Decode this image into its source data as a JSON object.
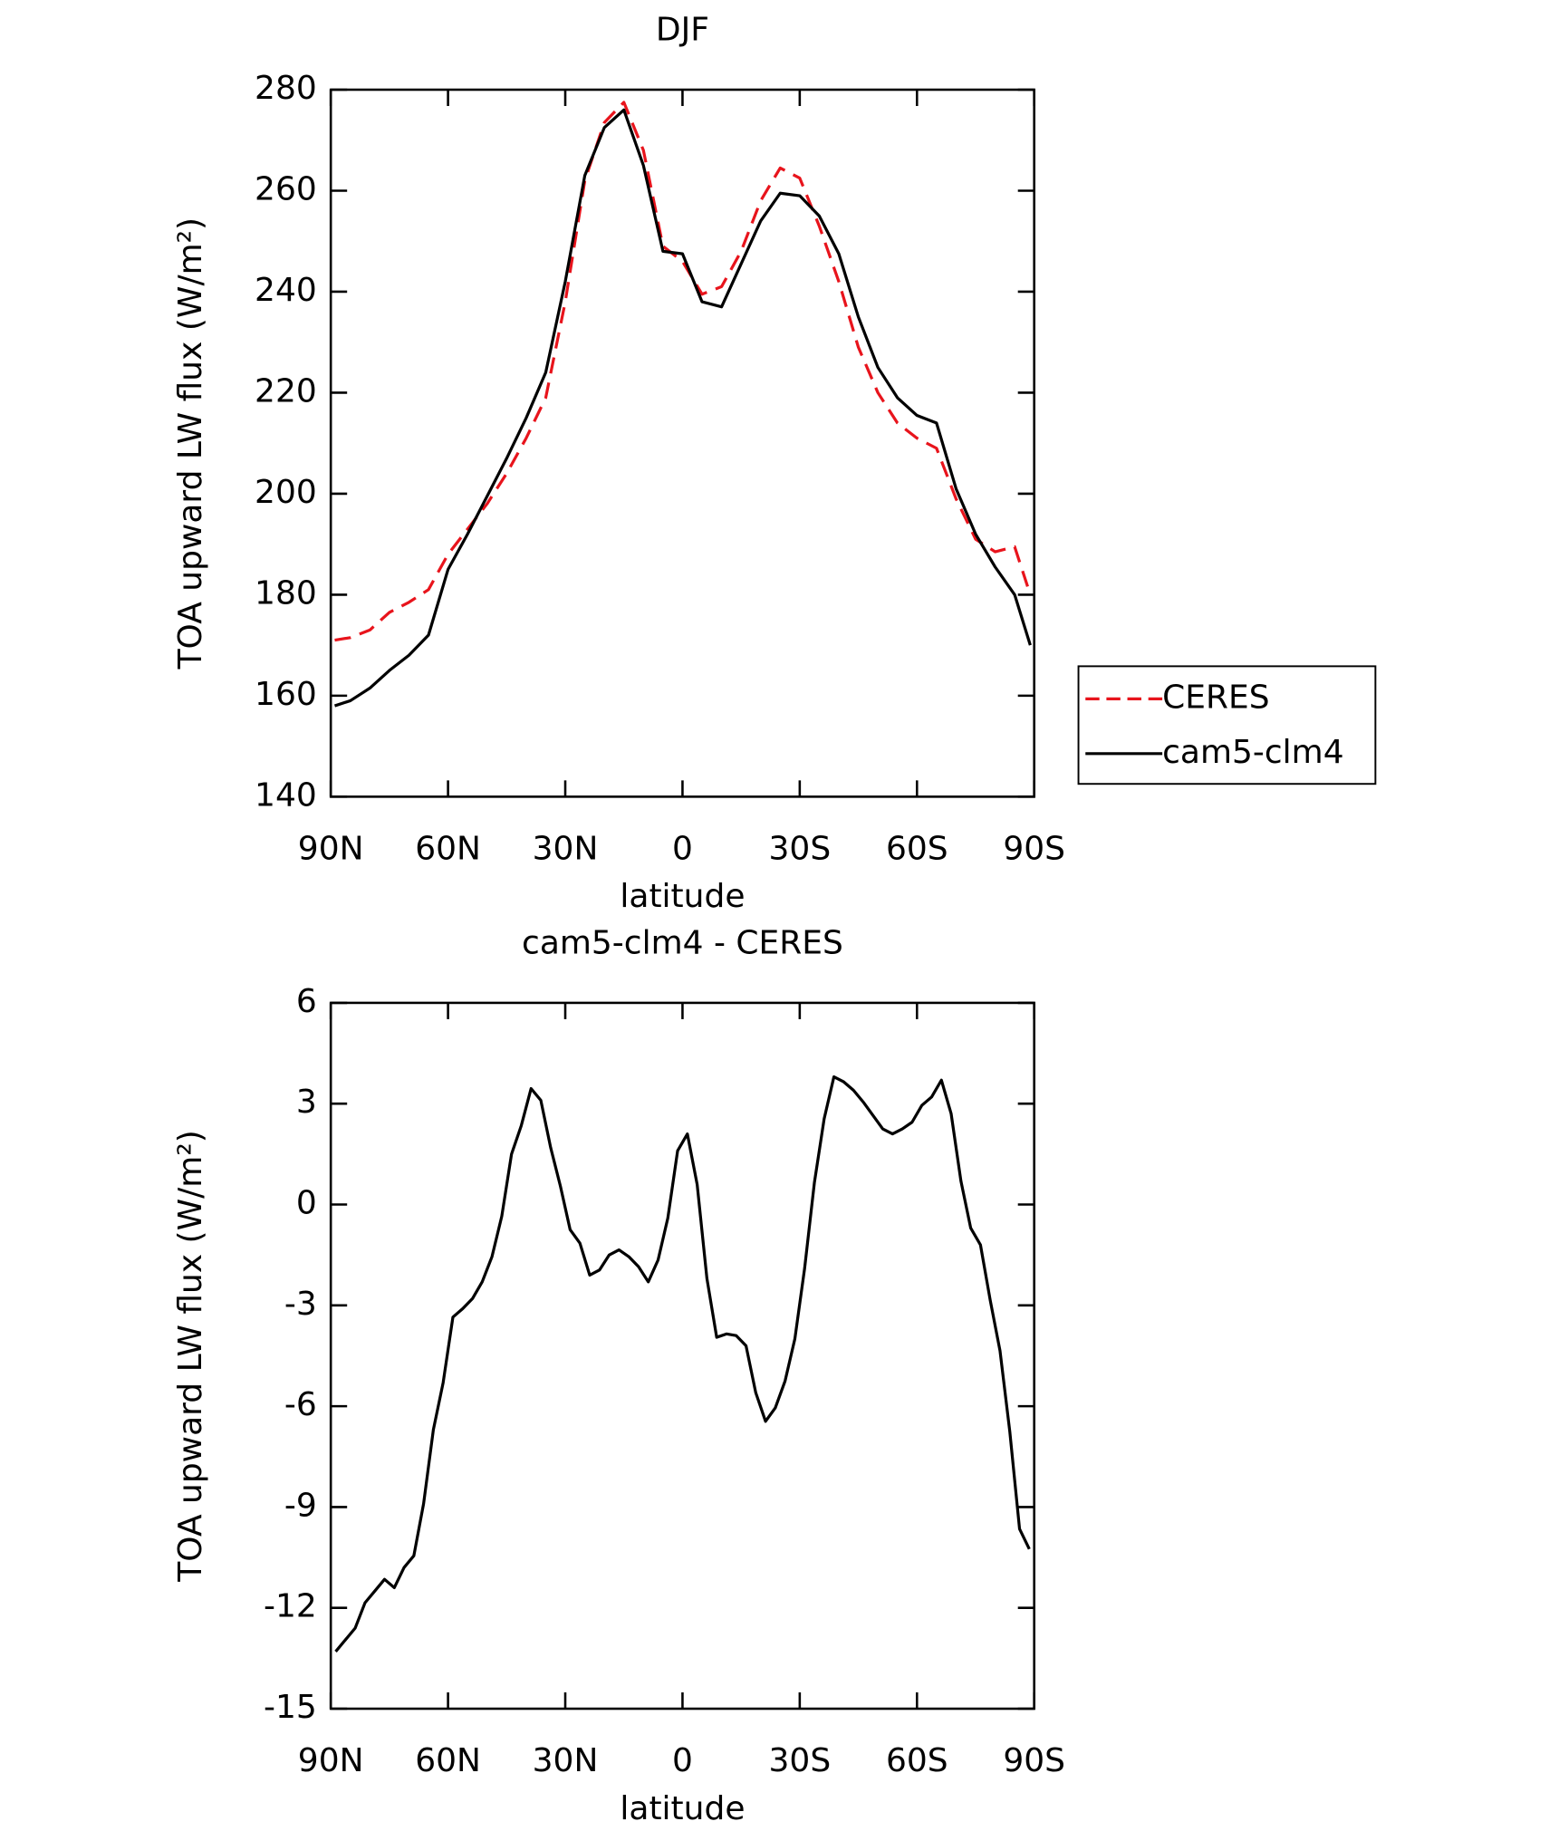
{
  "chart_data": [
    {
      "type": "line",
      "title": "DJF",
      "xlabel": "latitude",
      "ylabel": "TOA upward LW flux (W/m²)",
      "x": [
        89,
        85,
        80,
        75,
        70,
        65,
        60,
        55,
        50,
        45,
        40,
        35,
        30,
        25,
        20,
        15,
        10,
        5,
        0,
        -5,
        -10,
        -15,
        -20,
        -25,
        -30,
        -35,
        -40,
        -45,
        -50,
        -55,
        -60,
        -65,
        -70,
        -75,
        -80,
        -85,
        -89
      ],
      "series": [
        {
          "name": "CERES",
          "color": "#e8141c",
          "dashed": true,
          "values": [
            171,
            171.5,
            173,
            176.5,
            178.5,
            181,
            188,
            193,
            198,
            204,
            211,
            219,
            238,
            262,
            273.5,
            277.5,
            268,
            249,
            246,
            239.5,
            241,
            248,
            258,
            264.5,
            262.5,
            253,
            242,
            229,
            220,
            214,
            211,
            209,
            199,
            191,
            188.5,
            189.5,
            180
          ]
        },
        {
          "name": "cam5-clm4",
          "color": "#000000",
          "dashed": false,
          "values": [
            158,
            159,
            161.5,
            165,
            168,
            172,
            185,
            192,
            199.5,
            207,
            215,
            224,
            242,
            263,
            272.5,
            276,
            265,
            248,
            247.5,
            238,
            237,
            245.5,
            254,
            259.5,
            259,
            255,
            247.5,
            235,
            225,
            219,
            215.5,
            214,
            201,
            192,
            185.5,
            180,
            170
          ]
        }
      ],
      "xlim": [
        90,
        -90
      ],
      "xticks": [
        {
          "value": 90,
          "label": "90N"
        },
        {
          "value": 60,
          "label": "60N"
        },
        {
          "value": 30,
          "label": "30N"
        },
        0,
        {
          "value": -30,
          "label": "30S"
        },
        {
          "value": -60,
          "label": "60S"
        },
        {
          "value": -90,
          "label": "90S"
        }
      ],
      "ylim": [
        140,
        280
      ],
      "yticks": [
        140,
        160,
        180,
        200,
        220,
        240,
        260,
        280
      ],
      "legend": "right"
    },
    {
      "type": "line",
      "title": "cam5-clm4 - CERES",
      "xlabel": "latitude",
      "ylabel": "TOA upward LW flux (W/m²)",
      "x": [
        88.75,
        86.25,
        83.75,
        81.25,
        78.75,
        76.25,
        73.75,
        71.25,
        68.75,
        66.25,
        63.75,
        61.25,
        58.75,
        56.25,
        53.75,
        51.25,
        48.75,
        46.25,
        43.75,
        41.25,
        38.75,
        36.25,
        33.75,
        31.25,
        28.75,
        26.25,
        23.75,
        21.25,
        18.75,
        16.25,
        13.75,
        11.25,
        8.75,
        6.25,
        3.75,
        1.25,
        -1.25,
        -3.75,
        -6.25,
        -8.75,
        -11.25,
        -13.75,
        -16.25,
        -18.75,
        -21.25,
        -23.75,
        -26.25,
        -28.75,
        -31.25,
        -33.75,
        -36.25,
        -38.75,
        -41.25,
        -43.75,
        -46.25,
        -48.75,
        -51.25,
        -53.75,
        -56.25,
        -58.75,
        -61.25,
        -63.75,
        -66.25,
        -68.75,
        -71.25,
        -73.75,
        -76.25,
        -78.75,
        -81.25,
        -83.75,
        -86.25,
        -88.75
      ],
      "series": [
        {
          "color": "#000000",
          "dashed": false,
          "values": [
            -13.3,
            -12.95,
            -12.6,
            -11.85,
            -11.5,
            -11.15,
            -11.4,
            -10.8,
            -10.45,
            -8.9,
            -6.7,
            -5.3,
            -3.35,
            -3.1,
            -2.8,
            -2.3,
            -1.55,
            -0.35,
            1.5,
            2.35,
            3.45,
            3.1,
            1.7,
            0.55,
            -0.75,
            -1.15,
            -2.1,
            -1.95,
            -1.5,
            -1.35,
            -1.55,
            -1.85,
            -2.3,
            -1.65,
            -0.4,
            1.6,
            2.1,
            0.6,
            -2.2,
            -3.95,
            -3.85,
            -3.9,
            -4.2,
            -5.6,
            -6.45,
            -6.05,
            -5.25,
            -4.0,
            -1.9,
            0.65,
            2.55,
            3.8,
            3.65,
            3.4,
            3.05,
            2.65,
            2.25,
            2.1,
            2.25,
            2.45,
            2.95,
            3.2,
            3.7,
            2.7,
            0.7,
            -0.7,
            -1.2,
            -2.85,
            -4.35,
            -6.75,
            -9.65,
            -10.25
          ]
        }
      ],
      "xlim": [
        90,
        -90
      ],
      "xticks": [
        {
          "value": 90,
          "label": "90N"
        },
        {
          "value": 60,
          "label": "60N"
        },
        {
          "value": 30,
          "label": "30N"
        },
        0,
        {
          "value": -30,
          "label": "30S"
        },
        {
          "value": -60,
          "label": "60S"
        },
        {
          "value": -90,
          "label": "90S"
        }
      ],
      "ylim": [
        -15,
        6
      ],
      "yticks": [
        -15,
        -12,
        -9,
        -6,
        -3,
        0,
        3,
        6
      ]
    }
  ]
}
